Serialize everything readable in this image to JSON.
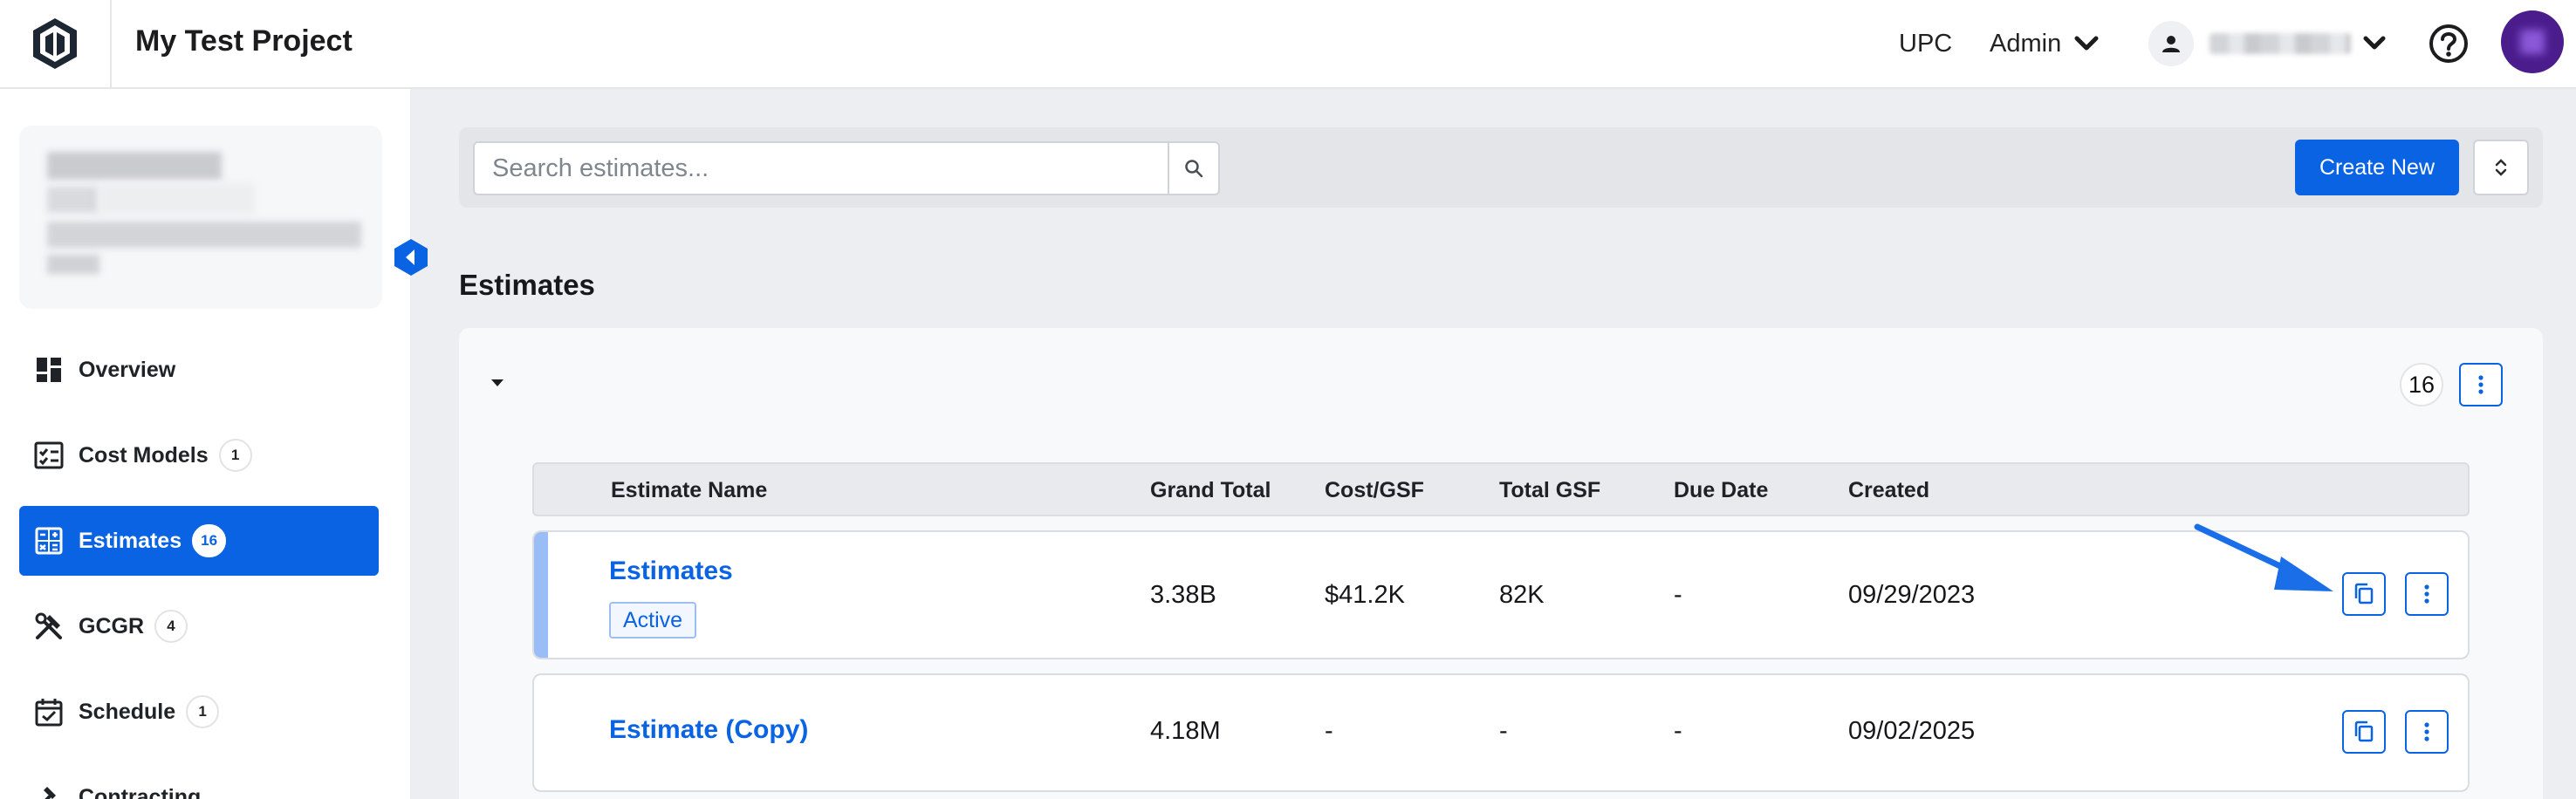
{
  "header": {
    "project_title": "My Test Project",
    "org_label": "UPC",
    "role_menu": "Admin",
    "icons": {
      "logo": "logo-hexagon-icon",
      "role_caret": "chevron-down-icon",
      "user": "person-icon",
      "user_caret": "chevron-down-icon",
      "help": "help-circle-icon"
    }
  },
  "sidebar": {
    "items": [
      {
        "label": "Overview",
        "badge": "",
        "icon": "dashboard-icon"
      },
      {
        "label": "Cost Models",
        "badge": "1",
        "icon": "checklist-icon"
      },
      {
        "label": "Estimates",
        "badge": "16",
        "icon": "calculator-icon",
        "active": true
      },
      {
        "label": "GCGR",
        "badge": "4",
        "icon": "tools-icon"
      },
      {
        "label": "Schedule",
        "badge": "1",
        "icon": "calendar-check-icon"
      },
      {
        "label": "Contracting",
        "badge": "",
        "icon": "gavel-icon"
      }
    ]
  },
  "toolbar": {
    "search_placeholder": "Search estimates...",
    "create_label": "Create New"
  },
  "estimates": {
    "title": "Estimates",
    "count": "16",
    "columns": [
      "Estimate Name",
      "Grand Total",
      "Cost/GSF",
      "Total GSF",
      "Due Date",
      "Created"
    ],
    "rows": [
      {
        "name": "Estimates",
        "status": "Active",
        "grand_total": "3.38B",
        "cost_gsf": "$41.2K",
        "total_gsf": "82K",
        "due_date": "-",
        "created": "09/29/2023"
      },
      {
        "name": "Estimate (Copy)",
        "status": "",
        "grand_total": "4.18M",
        "cost_gsf": "-",
        "total_gsf": "-",
        "due_date": "-",
        "created": "09/02/2025"
      }
    ]
  },
  "colors": {
    "accent": "#0a63e3",
    "row_accent": "#9bbdf5",
    "avatar": "#4a1c8c",
    "annotation_arrow": "#1a6fe8"
  }
}
